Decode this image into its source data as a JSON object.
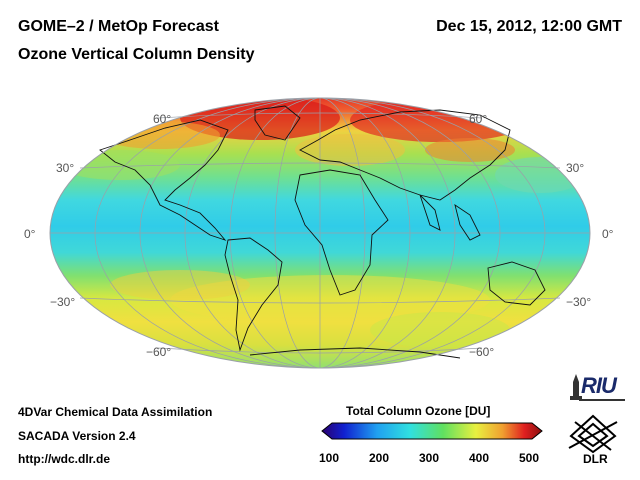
{
  "header": {
    "title": "GOME–2 / MetOp Forecast",
    "timestamp": "Dec 15, 2012, 12:00 GMT",
    "subtitle": "Ozone Vertical Column Density"
  },
  "map": {
    "projection": "Hammer-Aitoff",
    "lat_labels": {
      "n60": "60°",
      "n30": "30°",
      "eq": "0°",
      "s30": "−30°",
      "s60": "−60°"
    }
  },
  "colorbar": {
    "title": "Total Column Ozone [DU]",
    "ticks": [
      "100",
      "200",
      "300",
      "400",
      "500"
    ],
    "range": [
      100,
      500
    ]
  },
  "footer": {
    "line1": "4DVar Chemical Data Assimilation",
    "line2": "SACADA Version 2.4",
    "line3": "http://wdc.dlr.de"
  },
  "logos": {
    "riu": "RIU",
    "dlr": "DLR"
  }
}
